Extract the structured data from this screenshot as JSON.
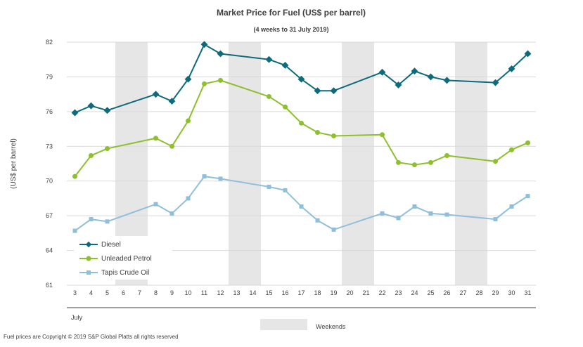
{
  "chart_data": {
    "type": "line",
    "title": "Market Price for Fuel (US$ per barrel)",
    "subtitle": "(4 weeks to 31 July 2019)",
    "ylabel": "(US$ per barrel)",
    "xlabel": "July",
    "ylim": [
      61,
      82
    ],
    "yticks": [
      61,
      64,
      67,
      70,
      73,
      76,
      79,
      82
    ],
    "x_days": [
      3,
      4,
      5,
      6,
      7,
      8,
      9,
      10,
      11,
      12,
      13,
      14,
      15,
      16,
      17,
      18,
      19,
      20,
      21,
      22,
      23,
      24,
      25,
      26,
      27,
      28,
      29,
      30,
      31
    ],
    "x_tick_labels": [
      "3",
      "4",
      "5",
      "6",
      "7",
      "8",
      "9",
      "10",
      "11",
      "12",
      "13",
      "14",
      "15",
      "16",
      "17",
      "18",
      "19",
      "20",
      "21",
      "22",
      "23",
      "24",
      "25",
      "26",
      "27",
      "28",
      "29",
      "30",
      "31"
    ],
    "weekend_bands": [
      [
        6,
        7
      ],
      [
        13,
        14
      ],
      [
        20,
        21
      ],
      [
        27,
        28
      ]
    ],
    "weekend_label": "Weekends",
    "footer": "Fuel prices are Copyright © 2019 S&P Global Platts all rights reserved",
    "series": [
      {
        "name": "Diesel",
        "color": "#0e6b7c",
        "marker": "diamond",
        "x": [
          3,
          4,
          5,
          8,
          9,
          10,
          11,
          12,
          15,
          16,
          17,
          18,
          19,
          22,
          23,
          24,
          25,
          26,
          29,
          30,
          31
        ],
        "values": [
          75.9,
          76.5,
          76.1,
          77.5,
          76.9,
          78.8,
          81.8,
          81.0,
          80.5,
          80.0,
          78.8,
          77.8,
          77.8,
          79.4,
          78.3,
          79.5,
          79.0,
          78.7,
          78.5,
          79.7,
          81.0
        ]
      },
      {
        "name": "Unleaded Petrol",
        "color": "#8dc02c",
        "marker": "circle",
        "x": [
          3,
          4,
          5,
          8,
          9,
          10,
          11,
          12,
          15,
          16,
          17,
          18,
          19,
          22,
          23,
          24,
          25,
          26,
          29,
          30,
          31
        ],
        "values": [
          70.4,
          72.2,
          72.8,
          73.7,
          73.0,
          75.2,
          78.4,
          78.7,
          77.3,
          76.4,
          75.0,
          74.2,
          73.9,
          74.0,
          71.6,
          71.4,
          71.6,
          72.2,
          71.7,
          72.7,
          73.3
        ]
      },
      {
        "name": "Tapis Crude Oil",
        "color": "#8fbfdb",
        "marker": "square",
        "x": [
          3,
          4,
          5,
          8,
          9,
          10,
          11,
          12,
          15,
          16,
          17,
          18,
          19,
          22,
          23,
          24,
          25,
          26,
          29,
          30,
          31
        ],
        "values": [
          65.7,
          66.7,
          66.5,
          68.0,
          67.2,
          68.5,
          70.4,
          70.2,
          69.5,
          69.2,
          67.8,
          66.6,
          65.8,
          67.2,
          66.8,
          67.8,
          67.2,
          67.1,
          66.7,
          67.8,
          68.7
        ]
      }
    ]
  }
}
